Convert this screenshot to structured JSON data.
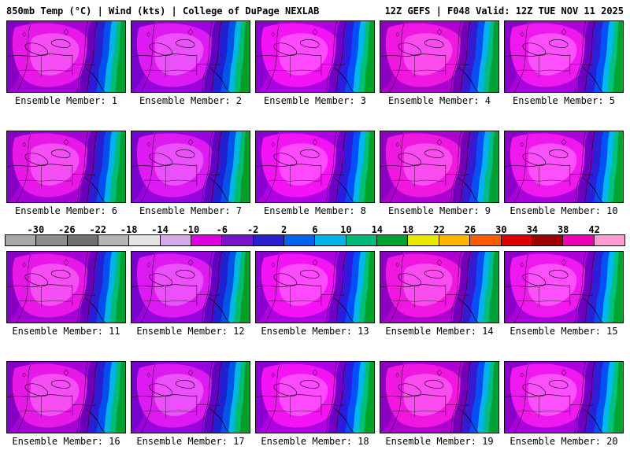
{
  "header": {
    "left": "850mb Temp (°C) | Wind (kts) | College of DuPage NEXLAB",
    "right": "12Z GEFS | F048 Valid: 12Z TUE NOV 11 2025"
  },
  "panels": [
    "Ensemble Member: 1",
    "Ensemble Member: 2",
    "Ensemble Member: 3",
    "Ensemble Member: 4",
    "Ensemble Member: 5",
    "Ensemble Member: 6",
    "Ensemble Member: 7",
    "Ensemble Member: 8",
    "Ensemble Member: 9",
    "Ensemble Member: 10",
    "Ensemble Member: 11",
    "Ensemble Member: 12",
    "Ensemble Member: 13",
    "Ensemble Member: 14",
    "Ensemble Member: 15",
    "Ensemble Member: 16",
    "Ensemble Member: 17",
    "Ensemble Member: 18",
    "Ensemble Member: 19",
    "Ensemble Member: 20"
  ],
  "colorbar": {
    "units": "°C",
    "tick_labels": [
      "-30",
      "-26",
      "-22",
      "-18",
      "-14",
      "-10",
      "-6",
      "-2",
      "2",
      "6",
      "10",
      "14",
      "18",
      "22",
      "26",
      "30",
      "34",
      "38",
      "42"
    ],
    "segment_colors": [
      "#a8a8a8",
      "#8c8c8c",
      "#707070",
      "#b4b4b4",
      "#e4e4e4",
      "#d8a8ec",
      "#e000e0",
      "#7a14cc",
      "#2a1ed2",
      "#0064f0",
      "#00b4e8",
      "#00bc78",
      "#00a030",
      "#e8e800",
      "#ffb400",
      "#ff5a00",
      "#e00000",
      "#a00000",
      "#f000b4",
      "#ff9ad2"
    ]
  }
}
